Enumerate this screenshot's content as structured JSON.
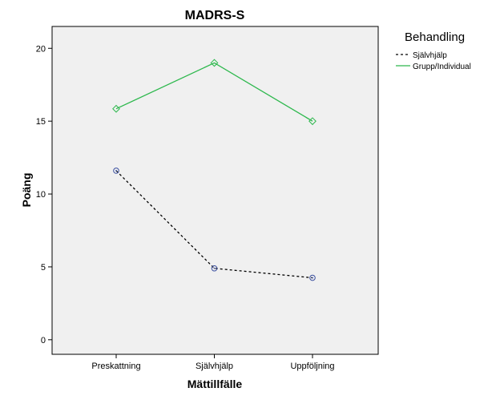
{
  "chart_data": {
    "type": "line",
    "title": "MADRS-S",
    "xlabel": "Mättillfälle",
    "ylabel": "Poäng",
    "categories": [
      "Preskattning",
      "Självhjälp",
      "Uppföljning"
    ],
    "ylim": [
      -1,
      21.5
    ],
    "yticks": [
      0,
      5,
      10,
      15,
      20
    ],
    "grid": false,
    "legend": {
      "title": "Behandling",
      "position": "right"
    },
    "series": [
      {
        "name": "Självhjälp",
        "values": [
          11.6,
          4.9,
          4.25
        ],
        "color": "#000000",
        "line_style": "dashed",
        "marker": "circle",
        "marker_color": "#3a4fa0"
      },
      {
        "name": "Grupp/Individual",
        "values": [
          15.85,
          19.0,
          15.0
        ],
        "color": "#2db84d",
        "line_style": "solid",
        "marker": "diamond",
        "marker_color": "#2db84d"
      }
    ]
  }
}
